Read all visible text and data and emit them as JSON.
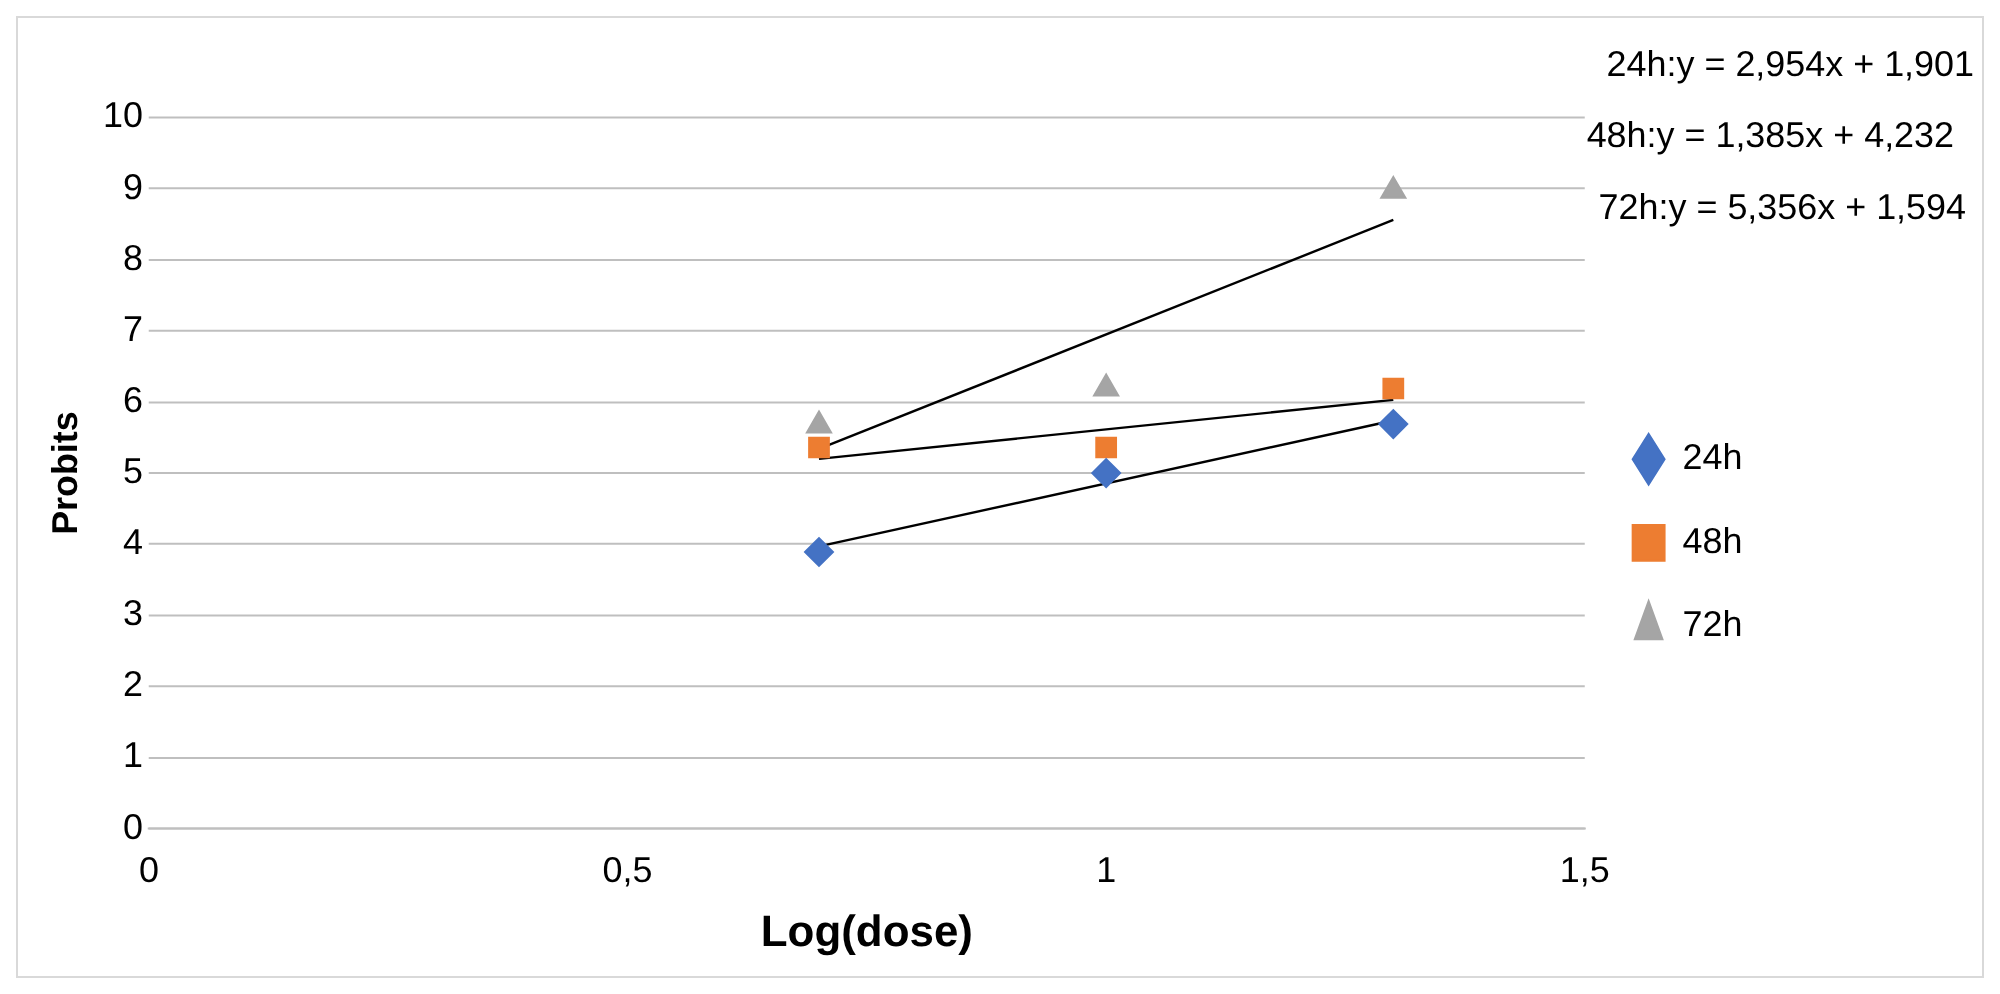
{
  "chart_data": {
    "type": "scatter",
    "xlabel": "Log(dose)",
    "ylabel": "Probits",
    "xlim": [
      0,
      1.5
    ],
    "xticks": [
      0,
      {
        "value": 0.5,
        "label": "0,5"
      },
      1,
      {
        "value": 1.5,
        "label": "1,5"
      }
    ],
    "ylim": [
      0,
      10
    ],
    "yticks": [
      0,
      1,
      2,
      3,
      4,
      5,
      6,
      7,
      8,
      9,
      10
    ],
    "grid": "y",
    "legend": "right",
    "annotations": [
      "24h:y = 2,954x + 1,901",
      "48h:y = 1,385x + 4,232",
      "72h:y = 5,356x + 1,594"
    ],
    "series": [
      {
        "name": "24h",
        "color": "#4472c4",
        "marker": "diamond",
        "x": [
          0.7,
          1,
          1.3
        ],
        "values": [
          3.89,
          5.0,
          5.69
        ]
      },
      {
        "name": "48h",
        "color": "#ed7d31",
        "marker": "square",
        "x": [
          0.7,
          1,
          1.3
        ],
        "values": [
          5.36,
          5.36,
          6.19
        ]
      },
      {
        "name": "72h",
        "color": "#a5a5a5",
        "marker": "triangle",
        "x": [
          0.7,
          1,
          1.3
        ],
        "values": [
          5.67,
          6.19,
          8.97
        ]
      },
      {
        "type": "line",
        "color": "#000000",
        "marker": "none",
        "x": [
          0.7,
          1.3
        ],
        "values": [
          3.97,
          5.74
        ]
      },
      {
        "type": "line",
        "color": "#000000",
        "marker": "none",
        "x": [
          0.7,
          1.3
        ],
        "values": [
          5.2,
          6.03
        ]
      },
      {
        "type": "line",
        "color": "#000000",
        "marker": "none",
        "x": [
          0.7,
          1.3
        ],
        "values": [
          5.34,
          8.56
        ]
      }
    ]
  }
}
